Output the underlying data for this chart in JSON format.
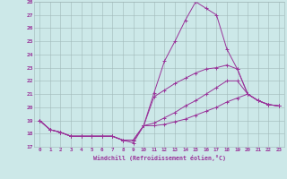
{
  "xlabel": "Windchill (Refroidissement éolien,°C)",
  "background_color": "#cce8e8",
  "grid_color": "#b0c8c8",
  "line_color": "#993399",
  "xlim": [
    -0.5,
    23.5
  ],
  "ylim": [
    17,
    28
  ],
  "yticks": [
    17,
    18,
    19,
    20,
    21,
    22,
    23,
    24,
    25,
    26,
    27,
    28
  ],
  "xticks": [
    0,
    1,
    2,
    3,
    4,
    5,
    6,
    7,
    8,
    9,
    10,
    11,
    12,
    13,
    14,
    15,
    16,
    17,
    18,
    19,
    20,
    21,
    22,
    23
  ],
  "series": [
    {
      "x": [
        0,
        1,
        2,
        3,
        4,
        5,
        6,
        7,
        8,
        9,
        10,
        11,
        12,
        13,
        14,
        15,
        16,
        17,
        18,
        19,
        20,
        21,
        22,
        23
      ],
      "y": [
        19.0,
        18.3,
        18.1,
        17.8,
        17.8,
        17.8,
        17.8,
        17.8,
        17.5,
        17.3,
        18.6,
        21.1,
        23.5,
        25.0,
        26.6,
        28.0,
        27.5,
        27.0,
        24.4,
        22.9,
        21.0,
        20.5,
        20.2,
        20.1
      ]
    },
    {
      "x": [
        0,
        1,
        2,
        3,
        4,
        5,
        6,
        7,
        8,
        9,
        10,
        11,
        12,
        13,
        14,
        15,
        16,
        17,
        18,
        19,
        20,
        21,
        22,
        23
      ],
      "y": [
        19.0,
        18.3,
        18.1,
        17.8,
        17.8,
        17.8,
        17.8,
        17.8,
        17.5,
        17.5,
        18.6,
        20.8,
        21.3,
        21.8,
        22.2,
        22.6,
        22.9,
        23.0,
        23.2,
        22.9,
        21.0,
        20.5,
        20.2,
        20.1
      ]
    },
    {
      "x": [
        0,
        1,
        2,
        3,
        4,
        5,
        6,
        7,
        8,
        9,
        10,
        11,
        12,
        13,
        14,
        15,
        16,
        17,
        18,
        19,
        20,
        21,
        22,
        23
      ],
      "y": [
        19.0,
        18.3,
        18.1,
        17.8,
        17.8,
        17.8,
        17.8,
        17.8,
        17.5,
        17.5,
        18.6,
        18.8,
        19.2,
        19.6,
        20.1,
        20.5,
        21.0,
        21.5,
        22.0,
        22.0,
        21.0,
        20.5,
        20.2,
        20.1
      ]
    },
    {
      "x": [
        0,
        1,
        2,
        3,
        4,
        5,
        6,
        7,
        8,
        9,
        10,
        11,
        12,
        13,
        14,
        15,
        16,
        17,
        18,
        19,
        20,
        21,
        22,
        23
      ],
      "y": [
        19.0,
        18.3,
        18.1,
        17.8,
        17.8,
        17.8,
        17.8,
        17.8,
        17.5,
        17.5,
        18.6,
        18.6,
        18.7,
        18.9,
        19.1,
        19.4,
        19.7,
        20.0,
        20.4,
        20.7,
        21.0,
        20.5,
        20.2,
        20.1
      ]
    }
  ]
}
